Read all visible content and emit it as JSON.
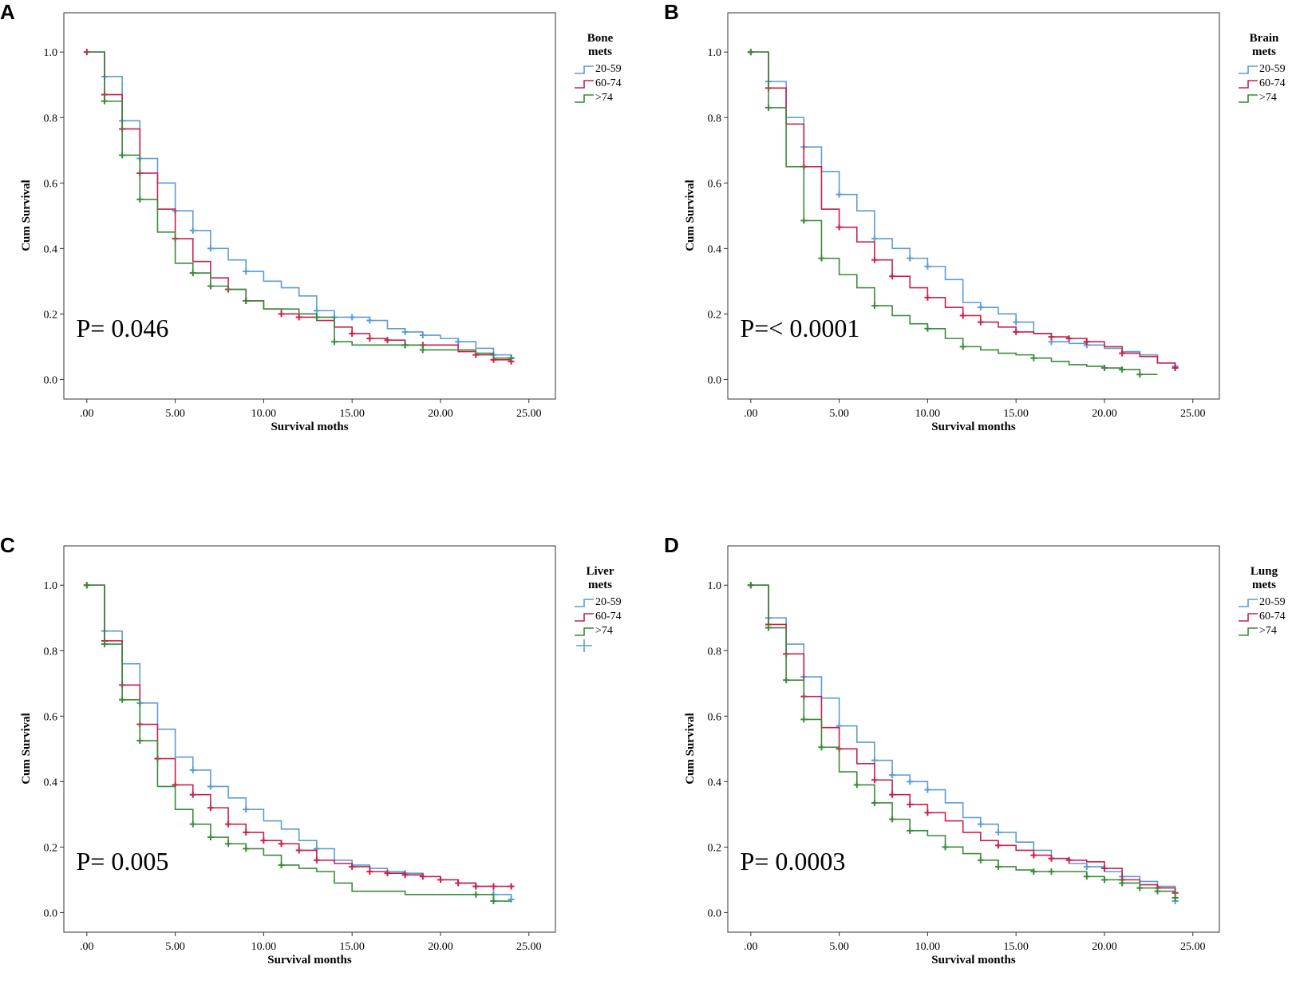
{
  "colors": {
    "c2059": "#5b9bd5",
    "c6074": "#c8204a",
    "c74": "#3a8a3a",
    "axis": "#333333"
  },
  "chart_data": [
    {
      "type": "line",
      "step": true,
      "panel_label": "A",
      "legend_title": [
        "Bone",
        "mets"
      ],
      "legend_extra_marker": false,
      "xlabel": "Survival moths",
      "ylabel": "Cum Survival",
      "xticks": [
        ".00",
        "5.00",
        "10.00",
        "15.00",
        "20.00",
        "25.00"
      ],
      "yticks": [
        "0.0",
        "0.2",
        "0.4",
        "0.6",
        "0.8",
        "1.0"
      ],
      "xlim": [
        -1.3,
        26.5
      ],
      "ylim": [
        -0.06,
        1.12
      ],
      "p_value": "P= 0.046",
      "series": [
        {
          "name": "20-59",
          "color_key": "c2059",
          "x": [
            0,
            1,
            2,
            3,
            4,
            5,
            6,
            7,
            8,
            9,
            10,
            11,
            12,
            13,
            14,
            15,
            16,
            17,
            18,
            19,
            20,
            21,
            22,
            23,
            24
          ],
          "y": [
            1.0,
            0.925,
            0.79,
            0.675,
            0.6,
            0.515,
            0.455,
            0.4,
            0.365,
            0.33,
            0.3,
            0.28,
            0.255,
            0.21,
            0.19,
            0.19,
            0.18,
            0.155,
            0.145,
            0.135,
            0.125,
            0.115,
            0.095,
            0.075,
            0.065
          ],
          "censor_x": [
            1,
            2,
            3,
            5,
            6,
            7,
            9,
            13,
            14,
            15,
            16,
            18,
            19,
            21,
            23,
            24
          ]
        },
        {
          "name": "60-74",
          "color_key": "c6074",
          "x": [
            0,
            1,
            2,
            3,
            4,
            5,
            6,
            7,
            8,
            9,
            10,
            11,
            12,
            13,
            14,
            15,
            16,
            17,
            18,
            19,
            20,
            21,
            22,
            23,
            24
          ],
          "y": [
            1.0,
            0.87,
            0.765,
            0.63,
            0.52,
            0.43,
            0.36,
            0.31,
            0.275,
            0.24,
            0.215,
            0.2,
            0.19,
            0.18,
            0.16,
            0.14,
            0.125,
            0.12,
            0.105,
            0.105,
            0.105,
            0.085,
            0.075,
            0.06,
            0.055
          ],
          "censor_x": [
            0,
            1,
            2,
            3,
            5,
            8,
            9,
            11,
            12,
            15,
            16,
            17,
            18,
            19,
            22,
            23,
            24
          ]
        },
        {
          "name": ">74",
          "color_key": "c74",
          "x": [
            0,
            1,
            2,
            3,
            4,
            5,
            6,
            7,
            8,
            9,
            10,
            11,
            12,
            13,
            14,
            15,
            16,
            17,
            18,
            19,
            20,
            21,
            22,
            23,
            24
          ],
          "y": [
            1.0,
            0.85,
            0.685,
            0.55,
            0.45,
            0.355,
            0.325,
            0.285,
            0.275,
            0.24,
            0.215,
            0.215,
            0.2,
            0.19,
            0.115,
            0.105,
            0.105,
            0.105,
            0.105,
            0.09,
            0.09,
            0.09,
            0.08,
            0.065,
            0.065
          ],
          "censor_x": [
            1,
            2,
            3,
            6,
            7,
            9,
            13,
            14,
            18,
            19,
            24
          ]
        }
      ]
    },
    {
      "type": "line",
      "step": true,
      "panel_label": "B",
      "legend_title": [
        "Brain",
        "mets"
      ],
      "legend_extra_marker": false,
      "xlabel": "Survival months",
      "ylabel": "Cum Survival",
      "xticks": [
        ".00",
        "5.00",
        "10.00",
        "15.00",
        "20.00",
        "25.00"
      ],
      "yticks": [
        "0.0",
        "0.2",
        "0.4",
        "0.6",
        "0.8",
        "1.0"
      ],
      "xlim": [
        -1.3,
        26.5
      ],
      "ylim": [
        -0.06,
        1.12
      ],
      "p_value": "P=< 0.0001",
      "series": [
        {
          "name": "20-59",
          "color_key": "c2059",
          "x": [
            0,
            1,
            2,
            3,
            4,
            5,
            6,
            7,
            8,
            9,
            10,
            11,
            12,
            13,
            14,
            15,
            16,
            17,
            18,
            19,
            20,
            21,
            22,
            23,
            24
          ],
          "y": [
            1.0,
            0.91,
            0.8,
            0.71,
            0.635,
            0.565,
            0.515,
            0.43,
            0.4,
            0.37,
            0.345,
            0.305,
            0.235,
            0.22,
            0.2,
            0.175,
            0.14,
            0.115,
            0.11,
            0.105,
            0.095,
            0.085,
            0.075,
            0.05,
            0.04
          ],
          "censor_x": [
            1,
            3,
            5,
            7,
            9,
            10,
            13,
            15,
            17,
            19,
            24
          ]
        },
        {
          "name": "60-74",
          "color_key": "c6074",
          "x": [
            0,
            1,
            2,
            3,
            4,
            5,
            6,
            7,
            8,
            9,
            10,
            11,
            12,
            13,
            14,
            15,
            16,
            17,
            18,
            19,
            20,
            21,
            22,
            23,
            24
          ],
          "y": [
            1.0,
            0.89,
            0.78,
            0.65,
            0.52,
            0.465,
            0.42,
            0.365,
            0.315,
            0.28,
            0.25,
            0.22,
            0.195,
            0.175,
            0.16,
            0.145,
            0.14,
            0.13,
            0.125,
            0.115,
            0.1,
            0.08,
            0.07,
            0.05,
            0.035
          ],
          "censor_x": [
            0,
            1,
            3,
            5,
            7,
            8,
            10,
            12,
            13,
            15,
            17,
            18,
            19,
            21,
            24
          ]
        },
        {
          "name": ">74",
          "color_key": "c74",
          "x": [
            0,
            1,
            2,
            3,
            4,
            5,
            6,
            7,
            8,
            9,
            10,
            11,
            12,
            13,
            14,
            15,
            16,
            17,
            18,
            19,
            20,
            21,
            22,
            23
          ],
          "y": [
            1.0,
            0.83,
            0.65,
            0.485,
            0.37,
            0.32,
            0.28,
            0.225,
            0.195,
            0.17,
            0.155,
            0.125,
            0.1,
            0.09,
            0.08,
            0.075,
            0.065,
            0.055,
            0.045,
            0.04,
            0.035,
            0.03,
            0.015,
            0.015
          ],
          "censor_x": [
            0,
            1,
            3,
            4,
            7,
            10,
            12,
            16,
            20,
            21,
            22
          ]
        }
      ]
    },
    {
      "type": "line",
      "step": true,
      "panel_label": "C",
      "legend_title": [
        "Liver",
        "mets"
      ],
      "legend_extra_marker": true,
      "xlabel": "Survival months",
      "ylabel": "Cum Survival",
      "xticks": [
        ".00",
        "5.00",
        "10.00",
        "15.00",
        "20.00",
        "25.00"
      ],
      "yticks": [
        "0.0",
        "0.2",
        "0.4",
        "0.6",
        "0.8",
        "1.0"
      ],
      "xlim": [
        -1.3,
        26.5
      ],
      "ylim": [
        -0.06,
        1.12
      ],
      "p_value": "P= 0.005",
      "series": [
        {
          "name": "20-59",
          "color_key": "c2059",
          "x": [
            0,
            1,
            2,
            3,
            4,
            5,
            6,
            7,
            8,
            9,
            10,
            11,
            12,
            13,
            14,
            15,
            16,
            17,
            18,
            19,
            20,
            21,
            22,
            23,
            24
          ],
          "y": [
            1.0,
            0.86,
            0.76,
            0.64,
            0.56,
            0.475,
            0.435,
            0.385,
            0.35,
            0.315,
            0.28,
            0.255,
            0.22,
            0.195,
            0.16,
            0.145,
            0.135,
            0.125,
            0.12,
            0.11,
            0.1,
            0.09,
            0.08,
            0.055,
            0.04
          ],
          "censor_x": [
            1,
            3,
            6,
            7,
            9,
            13,
            18,
            22,
            23,
            24
          ]
        },
        {
          "name": "60-74",
          "color_key": "c6074",
          "x": [
            0,
            1,
            2,
            3,
            4,
            5,
            6,
            7,
            8,
            9,
            10,
            11,
            12,
            13,
            14,
            15,
            16,
            17,
            18,
            19,
            20,
            21,
            22,
            23,
            24
          ],
          "y": [
            1.0,
            0.83,
            0.695,
            0.575,
            0.47,
            0.39,
            0.36,
            0.32,
            0.27,
            0.245,
            0.22,
            0.21,
            0.19,
            0.16,
            0.15,
            0.14,
            0.125,
            0.12,
            0.115,
            0.11,
            0.1,
            0.09,
            0.08,
            0.08,
            0.08
          ],
          "censor_x": [
            0,
            1,
            2,
            3,
            4,
            5,
            6,
            7,
            8,
            9,
            10,
            11,
            12,
            13,
            15,
            16,
            17,
            18,
            19,
            20,
            21,
            22,
            23,
            24
          ]
        },
        {
          "name": ">74",
          "color_key": "c74",
          "x": [
            0,
            1,
            2,
            3,
            4,
            5,
            6,
            7,
            8,
            9,
            10,
            11,
            12,
            13,
            14,
            15,
            16,
            17,
            18,
            19,
            20,
            21,
            22,
            23,
            24
          ],
          "y": [
            1.0,
            0.82,
            0.65,
            0.525,
            0.385,
            0.315,
            0.27,
            0.23,
            0.21,
            0.195,
            0.175,
            0.145,
            0.135,
            0.125,
            0.09,
            0.065,
            0.065,
            0.065,
            0.055,
            0.055,
            0.055,
            0.055,
            0.055,
            0.035,
            0.035
          ],
          "censor_x": [
            0,
            1,
            2,
            3,
            6,
            7,
            8,
            9,
            11,
            22,
            23
          ]
        }
      ]
    },
    {
      "type": "line",
      "step": true,
      "panel_label": "D",
      "legend_title": [
        "Lung",
        "mets"
      ],
      "legend_extra_marker": false,
      "xlabel": "Survival months",
      "ylabel": "Cum Survival",
      "xticks": [
        ".00",
        "5.00",
        "10.00",
        "15.00",
        "20.00",
        "25.00"
      ],
      "yticks": [
        "0.0",
        "0.2",
        "0.4",
        "0.6",
        "0.8",
        "1.0"
      ],
      "xlim": [
        -1.3,
        26.5
      ],
      "ylim": [
        -0.06,
        1.12
      ],
      "p_value": "P= 0.0003",
      "series": [
        {
          "name": "20-59",
          "color_key": "c2059",
          "x": [
            0,
            1,
            2,
            3,
            4,
            5,
            6,
            7,
            8,
            9,
            10,
            11,
            12,
            13,
            14,
            15,
            16,
            17,
            18,
            19,
            20,
            21,
            22,
            23,
            24
          ],
          "y": [
            1.0,
            0.9,
            0.82,
            0.72,
            0.655,
            0.57,
            0.52,
            0.465,
            0.42,
            0.4,
            0.375,
            0.335,
            0.29,
            0.27,
            0.245,
            0.215,
            0.19,
            0.165,
            0.15,
            0.14,
            0.125,
            0.11,
            0.095,
            0.08,
            0.035
          ],
          "censor_x": [
            1,
            3,
            5,
            7,
            8,
            9,
            10,
            13,
            14,
            17,
            19,
            21,
            24
          ]
        },
        {
          "name": "60-74",
          "color_key": "c6074",
          "x": [
            0,
            1,
            2,
            3,
            4,
            5,
            6,
            7,
            8,
            9,
            10,
            11,
            12,
            13,
            14,
            15,
            16,
            17,
            18,
            19,
            20,
            21,
            22,
            23,
            24
          ],
          "y": [
            1.0,
            0.88,
            0.79,
            0.66,
            0.565,
            0.5,
            0.455,
            0.405,
            0.36,
            0.33,
            0.305,
            0.28,
            0.245,
            0.22,
            0.205,
            0.19,
            0.175,
            0.165,
            0.16,
            0.155,
            0.135,
            0.1,
            0.085,
            0.075,
            0.06
          ],
          "censor_x": [
            0,
            1,
            2,
            3,
            5,
            7,
            8,
            9,
            10,
            14,
            16,
            17,
            18,
            20,
            21,
            23,
            24
          ]
        },
        {
          "name": ">74",
          "color_key": "c74",
          "x": [
            0,
            1,
            2,
            3,
            4,
            5,
            6,
            7,
            8,
            9,
            10,
            11,
            12,
            13,
            14,
            15,
            16,
            17,
            18,
            19,
            20,
            21,
            22,
            23,
            24
          ],
          "y": [
            1.0,
            0.87,
            0.71,
            0.59,
            0.505,
            0.43,
            0.39,
            0.335,
            0.285,
            0.25,
            0.235,
            0.2,
            0.18,
            0.16,
            0.14,
            0.13,
            0.125,
            0.125,
            0.125,
            0.11,
            0.1,
            0.09,
            0.075,
            0.065,
            0.045
          ],
          "censor_x": [
            0,
            1,
            2,
            3,
            4,
            6,
            7,
            8,
            9,
            11,
            13,
            14,
            16,
            17,
            19,
            20,
            21,
            22,
            23,
            24
          ]
        }
      ]
    }
  ]
}
